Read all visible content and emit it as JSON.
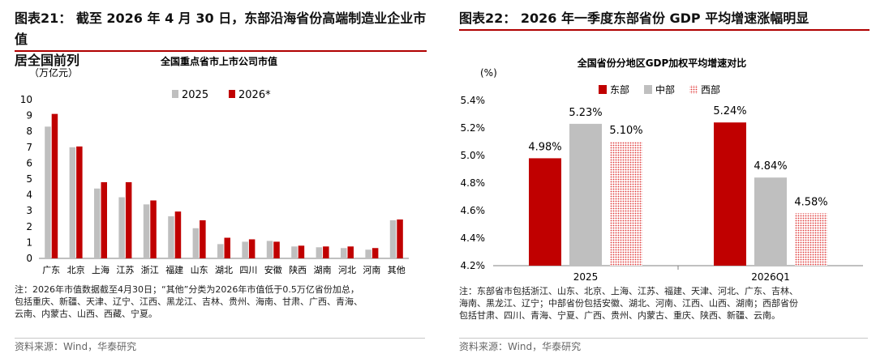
{
  "left": {
    "heading_line1": "图表21：  截至 2026 年 4 月 30 日，东部沿海省份高端制造业企业市值",
    "heading_line2": "居全国前列",
    "note_line1": "注：2026年市值数据截至4月30日；“其他”分类为2026年市值低于0.5万亿省份加总，",
    "note_line2": "包括重庆、新疆、天津、辽宁、江西、黑龙江、吉林、贵州、海南、甘肃、广西、青海、",
    "note_line3": "云南、内蒙古、山西、西藏、宁夏。",
    "source": "资料来源：Wind，华泰研究"
  },
  "right": {
    "heading": "图表22：  2026 年一季度东部省份 GDP 平均增速涨幅明显",
    "note_line1": "注：东部省市包括浙江、山东、北京、上海、江苏、福建、天津、河北、广东、吉林、",
    "note_line2": "海南、黑龙江、辽宁；中部省份包括安徽、湖北、河南、江西、山西、湖南；西部省份",
    "note_line3": "包括甘肃、四川、青海、宁夏、广西、贵州、内蒙古、重庆、陕西、新疆、云南。",
    "source": "资料来源：Wind，华泰研究"
  },
  "chart_data": [
    {
      "type": "bar",
      "title": "全国重点省市上市公司市值",
      "ylabel": "（万亿元）",
      "xlabel": "",
      "categories": [
        "广东",
        "北京",
        "上海",
        "江苏",
        "浙江",
        "福建",
        "山东",
        "湖北",
        "四川",
        "安徽",
        "陕西",
        "湖南",
        "河北",
        "河南",
        "其他"
      ],
      "series": [
        {
          "name": "2025",
          "color": "#bfbfbf",
          "values": [
            8.3,
            7.0,
            4.4,
            3.85,
            3.4,
            2.65,
            1.9,
            0.9,
            1.05,
            1.1,
            0.75,
            0.7,
            0.65,
            0.55,
            2.4
          ]
        },
        {
          "name": "2026*",
          "color": "#c00000",
          "values": [
            9.1,
            7.05,
            4.8,
            4.8,
            3.65,
            2.95,
            2.4,
            1.3,
            1.2,
            1.05,
            0.8,
            0.75,
            0.75,
            0.65,
            2.45
          ]
        }
      ],
      "ylim": [
        0,
        10
      ],
      "yticks": [
        0,
        1,
        2,
        3,
        4,
        5,
        6,
        7,
        8,
        9,
        10
      ],
      "legend": "top-right",
      "grid": false
    },
    {
      "type": "bar",
      "title": "全国省份分地区GDP加权平均增速对比",
      "ylabel": "(%)",
      "xlabel": "",
      "categories": [
        "2025",
        "2026Q1"
      ],
      "series": [
        {
          "name": "东部",
          "color": "#c00000",
          "fill": "solid",
          "values": [
            4.98,
            5.24
          ]
        },
        {
          "name": "中部",
          "color": "#bfbfbf",
          "fill": "solid",
          "values": [
            5.23,
            4.84
          ]
        },
        {
          "name": "西部",
          "color": "#e03a3a",
          "fill": "dotted",
          "values": [
            5.1,
            4.58
          ]
        }
      ],
      "data_labels": [
        [
          "4.98%",
          "5.23%",
          "5.10%"
        ],
        [
          "5.24%",
          "4.84%",
          "4.58%"
        ]
      ],
      "ylim": [
        4.2,
        5.4
      ],
      "yticks": [
        4.2,
        4.4,
        4.6,
        4.8,
        5.0,
        5.2,
        5.4
      ],
      "ytick_labels": [
        "4.2%",
        "4.4%",
        "4.6%",
        "4.8%",
        "5.0%",
        "5.2%",
        "5.4%"
      ],
      "legend": "top-left",
      "grid": false
    }
  ]
}
